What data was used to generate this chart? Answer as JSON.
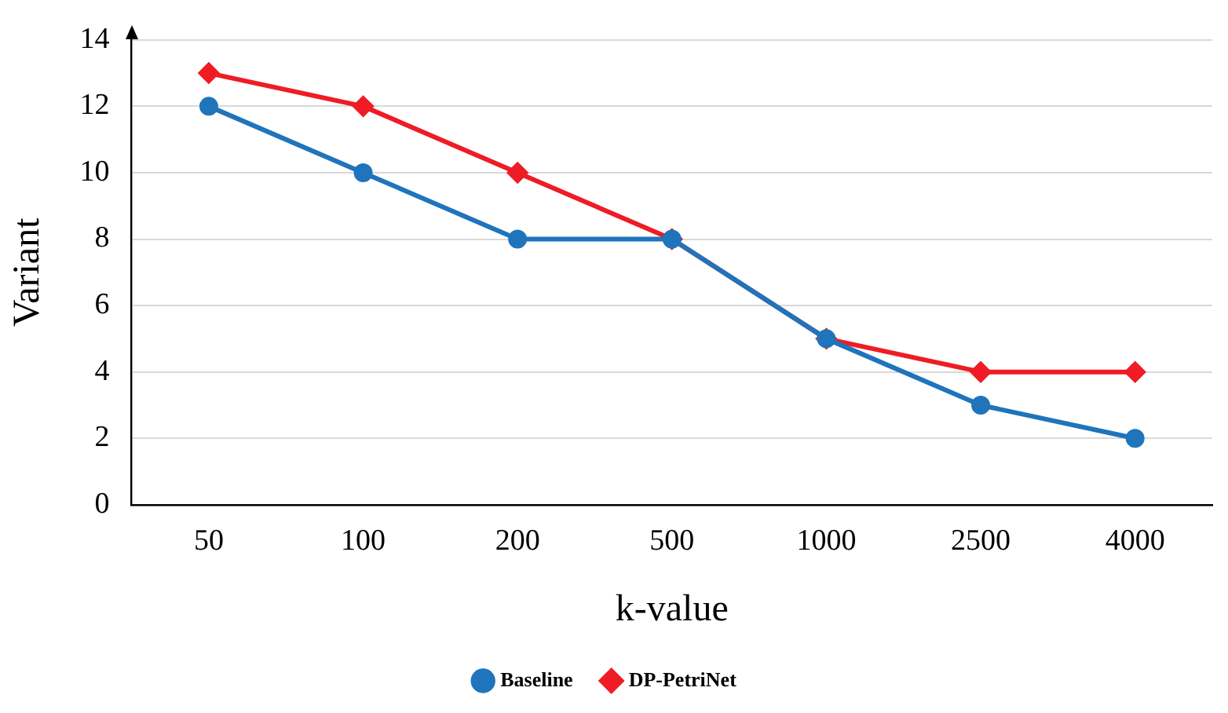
{
  "chart_data": {
    "type": "line",
    "xlabel": "k-value",
    "ylabel": "Variant",
    "categories": [
      "50",
      "100",
      "200",
      "500",
      "1000",
      "2500",
      "4000"
    ],
    "series": [
      {
        "name": "DP-PetriNet",
        "color": "#ee1c25",
        "values": [
          13,
          12,
          10,
          8,
          5,
          4,
          4
        ],
        "marker": "diamond"
      },
      {
        "name": "Baseline",
        "color": "#1f74bc",
        "values": [
          12,
          10,
          8,
          8,
          5,
          3,
          2
        ],
        "marker": "circle"
      }
    ],
    "ylim": [
      0,
      14
    ],
    "yticks": [
      0,
      2,
      4,
      6,
      8,
      10,
      12,
      14
    ],
    "grid": "y",
    "legend": "bottom",
    "line_style": "solid"
  }
}
